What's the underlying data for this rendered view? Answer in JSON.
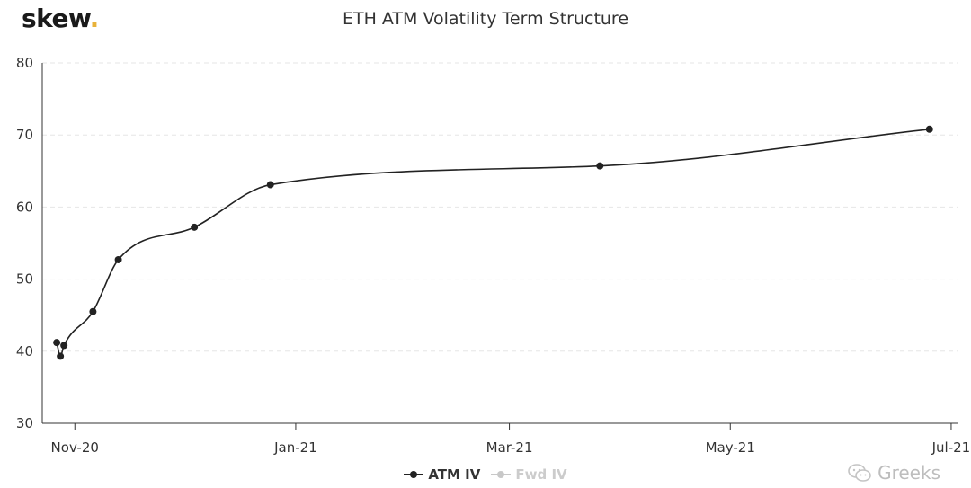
{
  "brand": {
    "name": "skew",
    "dot": "."
  },
  "watermark": {
    "text": "Greeks",
    "icon": "wechat-icon"
  },
  "chart_data": {
    "type": "line",
    "title": "ETH ATM Volatility Term Structure",
    "xlabel": "",
    "ylabel": "",
    "x_axis_type": "date",
    "xlim": [
      "2020-10-23",
      "2021-07-03"
    ],
    "ylim": [
      30,
      80
    ],
    "y_ticks": [
      30,
      40,
      50,
      60,
      70,
      80
    ],
    "x_ticks": [
      {
        "date": "2020-11-01",
        "label": "Nov-20"
      },
      {
        "date": "2021-01-01",
        "label": "Jan-21"
      },
      {
        "date": "2021-03-01",
        "label": "Mar-21"
      },
      {
        "date": "2021-05-01",
        "label": "May-21"
      },
      {
        "date": "2021-07-01",
        "label": "Jul-21"
      }
    ],
    "grid": {
      "horizontal": true,
      "style": "dashed",
      "color": "#e6e6e6"
    },
    "legend_position": "bottom-center",
    "series": [
      {
        "name": "ATM IV",
        "color": "#222222",
        "visible": true,
        "points": [
          {
            "x": "2020-10-27",
            "y": 41.2
          },
          {
            "x": "2020-10-28",
            "y": 39.3
          },
          {
            "x": "2020-10-29",
            "y": 40.8
          },
          {
            "x": "2020-11-06",
            "y": 45.5
          },
          {
            "x": "2020-11-13",
            "y": 52.7
          },
          {
            "x": "2020-12-04",
            "y": 57.2
          },
          {
            "x": "2020-12-25",
            "y": 63.1
          },
          {
            "x": "2021-03-26",
            "y": 65.7
          },
          {
            "x": "2021-06-25",
            "y": 70.8
          }
        ]
      },
      {
        "name": "Fwd IV",
        "color": "#c8c8c8",
        "visible": false,
        "points": []
      }
    ]
  }
}
